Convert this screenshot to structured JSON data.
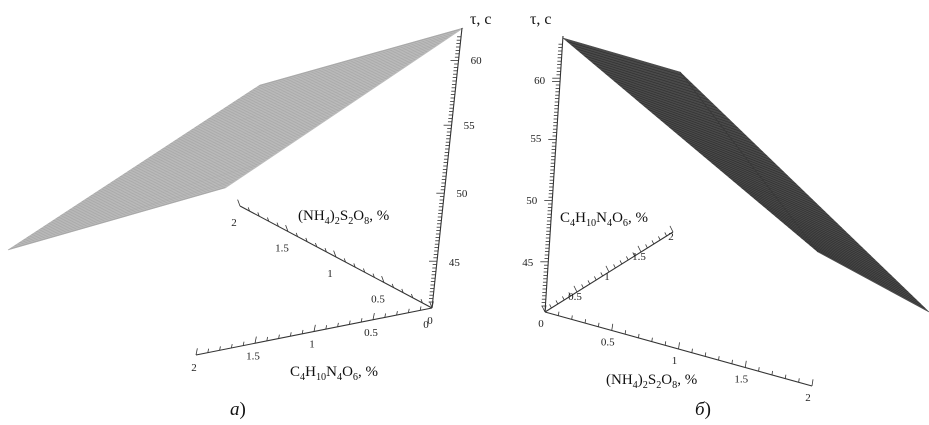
{
  "chart_data": [
    {
      "type": "surface3d",
      "panel_label": "а",
      "axes": {
        "z": {
          "label": "τ, с",
          "ticks": [
            "45",
            "50",
            "55",
            "60"
          ],
          "range": [
            42,
            63
          ]
        },
        "y": {
          "label_parts": [
            [
              "(NH",
              "n"
            ],
            [
              "4",
              "s"
            ],
            [
              ")",
              "n"
            ],
            [
              "2",
              "s"
            ],
            [
              "S",
              "n"
            ],
            [
              "2",
              "s"
            ],
            [
              "O",
              "n"
            ],
            [
              "8",
              "s"
            ],
            [
              ", %",
              "n"
            ]
          ],
          "ticks": [
            "0",
            "0.5",
            "1",
            "1.5",
            "2"
          ],
          "range": [
            0,
            2
          ]
        },
        "x": {
          "label_parts": [
            [
              "C",
              "n"
            ],
            [
              "4",
              "s"
            ],
            [
              "H",
              "n"
            ],
            [
              "10",
              "s"
            ],
            [
              "N",
              "n"
            ],
            [
              "4",
              "s"
            ],
            [
              "O",
              "n"
            ],
            [
              "6",
              "s"
            ],
            [
              ", %",
              "n"
            ]
          ],
          "ticks": [
            "0",
            "0.5",
            "1",
            "1.5",
            "2"
          ],
          "range": [
            0,
            2
          ]
        }
      },
      "surface_color": "#a9a9a9",
      "grid": true
    },
    {
      "type": "surface3d",
      "panel_label": "б",
      "axes": {
        "z": {
          "label": "τ, с",
          "ticks": [
            "45",
            "50",
            "55",
            "60"
          ],
          "range": [
            42,
            63
          ]
        },
        "y": {
          "label_parts": [
            [
              "C",
              "n"
            ],
            [
              "4",
              "s"
            ],
            [
              "H",
              "n"
            ],
            [
              "10",
              "s"
            ],
            [
              "N",
              "n"
            ],
            [
              "4",
              "s"
            ],
            [
              "O",
              "n"
            ],
            [
              "6",
              "s"
            ],
            [
              ", %",
              "n"
            ]
          ],
          "ticks": [
            "0.5",
            "1",
            "1.5",
            "2"
          ],
          "range": [
            0,
            2
          ]
        },
        "x": {
          "label_parts": [
            [
              "(NH",
              "n"
            ],
            [
              "4",
              "s"
            ],
            [
              ")",
              "n"
            ],
            [
              "2",
              "s"
            ],
            [
              "S",
              "n"
            ],
            [
              "2",
              "s"
            ],
            [
              "O",
              "n"
            ],
            [
              "8",
              "s"
            ],
            [
              ", %",
              "n"
            ]
          ],
          "ticks": [
            "0",
            "0.5",
            "1",
            "1.5",
            "2"
          ],
          "range": [
            0,
            2
          ]
        }
      },
      "surface_color": "#4a4a4a",
      "grid": true
    }
  ]
}
